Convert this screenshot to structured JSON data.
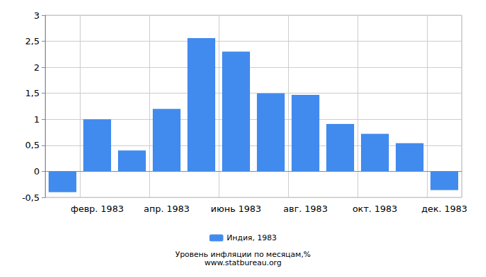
{
  "chart_data": {
    "type": "bar",
    "title": "Уровень инфляции по месяцам,%",
    "subtitle": "www.statbureau.org",
    "categories": [
      null,
      "февр. 1983",
      null,
      "апр. 1983",
      null,
      "июнь 1983",
      null,
      "авг. 1983",
      null,
      "окт. 1983",
      null,
      "дек. 1983"
    ],
    "series": [
      {
        "name": "Индия, 1983",
        "color": "#428bee",
        "values": [
          -0.4,
          1.0,
          0.4,
          1.2,
          2.56,
          2.3,
          1.5,
          1.47,
          0.91,
          0.72,
          0.54,
          -0.36
        ]
      }
    ],
    "ylim": [
      -0.5,
      3
    ],
    "yticks": [
      {
        "value": -0.5,
        "label": "-0,5"
      },
      0,
      {
        "value": 0.5,
        "label": "0,5"
      },
      1,
      {
        "value": 1.5,
        "label": "1,5"
      },
      2,
      {
        "value": 2.5,
        "label": "2,5"
      },
      3
    ],
    "grid": true,
    "legend": "bottom"
  }
}
